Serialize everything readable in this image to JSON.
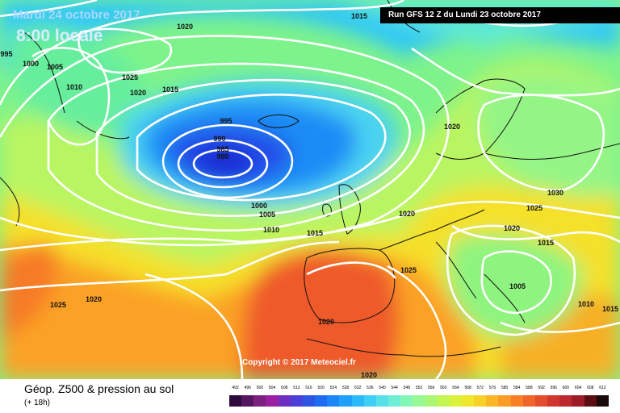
{
  "header": {
    "date": "Mardi 24 octobre 2017",
    "local_time": "8:00 locale",
    "run": "Run GFS 12 Z du Lundi 23 octobre 2017"
  },
  "copyright": "Copyright © 2017 Meteociel.fr",
  "legend": {
    "title": "Géop. Z500 & pression au sol",
    "subtitle": "(+ 18h)",
    "scale_values": [
      "492",
      "496",
      "500",
      "504",
      "508",
      "512",
      "516",
      "520",
      "524",
      "528",
      "532",
      "536",
      "540",
      "544",
      "548",
      "552",
      "556",
      "560",
      "564",
      "568",
      "572",
      "576",
      "580",
      "584",
      "588",
      "592",
      "596",
      "600",
      "604",
      "608",
      "612"
    ],
    "scale_colors": [
      "#2c0a3c",
      "#55155f",
      "#7d2180",
      "#9b1fa3",
      "#6d2fc2",
      "#4a3fd6",
      "#2e56e4",
      "#1f6cf1",
      "#1a86f7",
      "#1fa0fb",
      "#2ab9fb",
      "#3fcff6",
      "#58e0ea",
      "#6eeed5",
      "#84f7b7",
      "#98f995",
      "#abf673",
      "#c3f553",
      "#dcf13c",
      "#f0e62d",
      "#f8d128",
      "#fab826",
      "#fa9c26",
      "#f78027",
      "#f06529",
      "#e34d2b",
      "#d1382d",
      "#bd2830",
      "#9c1c28",
      "#5a0e14",
      "#1a0a0a"
    ]
  },
  "map": {
    "isobar_labels": [
      {
        "text": "1020"
      },
      {
        "text": "1015"
      },
      {
        "text": "995"
      },
      {
        "text": "1000"
      },
      {
        "text": "1005"
      },
      {
        "text": "1010"
      },
      {
        "text": "1025"
      },
      {
        "text": "1020"
      },
      {
        "text": "1015"
      },
      {
        "text": "995"
      },
      {
        "text": "990"
      },
      {
        "text": "985"
      },
      {
        "text": "980"
      },
      {
        "text": "1000"
      },
      {
        "text": "1005"
      },
      {
        "text": "1010"
      },
      {
        "text": "1015"
      },
      {
        "text": "1020"
      },
      {
        "text": "1020"
      },
      {
        "text": "1030"
      },
      {
        "text": "1025"
      },
      {
        "text": "1020"
      },
      {
        "text": "1015"
      },
      {
        "text": "1025"
      },
      {
        "text": "1005"
      },
      {
        "text": "1010"
      },
      {
        "text": "1015"
      },
      {
        "text": "1025"
      },
      {
        "text": "1020"
      },
      {
        "text": "1020"
      },
      {
        "text": "1020"
      }
    ]
  }
}
